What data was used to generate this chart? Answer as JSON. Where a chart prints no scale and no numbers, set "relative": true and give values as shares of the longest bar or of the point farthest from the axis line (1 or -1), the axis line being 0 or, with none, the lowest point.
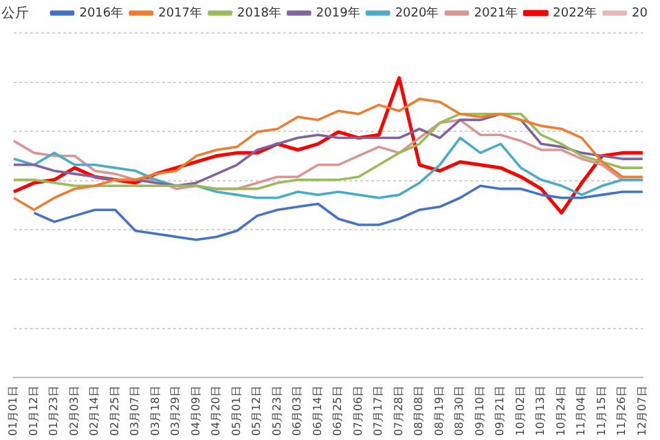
{
  "chart_data": {
    "type": "line",
    "ylabel": "公斤",
    "relative": true,
    "grid": "y",
    "legend": "top",
    "marker": "none",
    "line_style": "solid",
    "categories": [
      "01月01日",
      "01月12日",
      "01月23日",
      "02月03日",
      "02月14日",
      "02月25日",
      "03月07日",
      "03月18日",
      "03月29日",
      "04月09日",
      "04月20日",
      "05月01日",
      "05月12日",
      "05月23日",
      "06月03日",
      "06月14日",
      "06月25日",
      "07月06日",
      "07月17日",
      "07月28日",
      "08月08日",
      "08月19日",
      "08月30日",
      "09月10日",
      "09月21日",
      "10月02日",
      "10月13日",
      "10月24日",
      "11月04日",
      "11月15日",
      "11月26日",
      "12月07日"
    ],
    "series": [
      {
        "name": "2016年",
        "color": "#4472c4",
        "values": [
          null,
          0.55,
          0.52,
          0.54,
          0.56,
          0.56,
          0.49,
          0.48,
          0.47,
          0.46,
          0.47,
          0.49,
          0.54,
          0.56,
          0.57,
          0.58,
          0.53,
          0.51,
          0.51,
          0.53,
          0.56,
          0.57,
          0.6,
          0.64,
          0.63,
          0.63,
          0.61,
          0.6,
          0.6,
          0.61,
          0.62,
          0.62
        ]
      },
      {
        "name": "2017年",
        "color": "#ed7d31",
        "values": [
          0.6,
          0.56,
          0.6,
          0.63,
          0.64,
          0.66,
          0.66,
          0.68,
          0.69,
          0.74,
          0.76,
          0.77,
          0.82,
          0.83,
          0.87,
          0.86,
          0.89,
          0.88,
          0.91,
          0.89,
          0.93,
          0.92,
          0.88,
          0.87,
          0.88,
          0.86,
          0.84,
          0.83,
          0.8,
          0.72,
          0.67,
          0.67
        ]
      },
      {
        "name": "2018年",
        "color": "#9bbb59",
        "values": [
          0.66,
          0.66,
          0.65,
          0.64,
          0.64,
          0.64,
          0.64,
          0.64,
          0.64,
          0.64,
          0.63,
          0.63,
          0.63,
          0.65,
          0.66,
          0.66,
          0.66,
          0.67,
          0.71,
          0.75,
          0.78,
          0.85,
          0.88,
          0.88,
          0.88,
          0.88,
          0.81,
          0.78,
          0.74,
          0.72,
          0.7,
          0.7
        ]
      },
      {
        "name": "2019年",
        "color": "#8064a2",
        "values": [
          0.71,
          0.71,
          0.69,
          0.68,
          0.67,
          0.66,
          0.66,
          0.65,
          0.64,
          0.65,
          0.68,
          0.71,
          0.76,
          0.78,
          0.8,
          0.81,
          0.8,
          0.8,
          0.8,
          0.8,
          0.83,
          0.8,
          0.86,
          0.86,
          0.88,
          0.86,
          0.78,
          0.77,
          0.75,
          0.74,
          0.73,
          0.73
        ]
      },
      {
        "name": "2020年",
        "color": "#4bacc6",
        "values": [
          0.73,
          0.71,
          0.75,
          0.71,
          0.71,
          0.7,
          0.69,
          0.66,
          0.64,
          0.64,
          0.62,
          0.61,
          0.6,
          0.6,
          0.62,
          0.61,
          0.62,
          0.61,
          0.6,
          0.61,
          0.65,
          0.71,
          0.8,
          0.75,
          0.78,
          0.7,
          0.66,
          0.64,
          0.61,
          0.64,
          0.66,
          0.66
        ]
      },
      {
        "name": "2021年",
        "color": "#d99694",
        "values": [
          0.79,
          0.75,
          0.74,
          0.74,
          0.69,
          0.68,
          0.66,
          0.66,
          0.63,
          0.64,
          0.63,
          0.63,
          0.65,
          0.67,
          0.67,
          0.71,
          0.71,
          0.74,
          0.77,
          0.75,
          0.8,
          0.85,
          0.86,
          0.81,
          0.81,
          0.79,
          0.76,
          0.76,
          0.73,
          0.71,
          0.66,
          0.66
        ]
      },
      {
        "name": "2022年",
        "color": "#ff0000",
        "values": [
          0.62,
          0.65,
          0.66,
          0.7,
          0.67,
          0.66,
          0.65,
          0.68,
          0.7,
          0.72,
          0.74,
          0.75,
          0.75,
          0.78,
          0.76,
          0.78,
          0.82,
          0.8,
          0.81,
          1,
          0.71,
          0.69,
          0.72,
          0.71,
          0.7,
          0.67,
          0.63,
          0.55,
          0.65,
          0.74,
          0.75,
          0.75
        ]
      },
      {
        "name": "20",
        "color": "#e6b9b8",
        "values": [
          null,
          null,
          null,
          null,
          null,
          null,
          null,
          null,
          null,
          null,
          null,
          null,
          null,
          null,
          null,
          null,
          null,
          null,
          null,
          null,
          null,
          null,
          null,
          null,
          null,
          null,
          null,
          null,
          null,
          null,
          null,
          null
        ]
      }
    ]
  }
}
